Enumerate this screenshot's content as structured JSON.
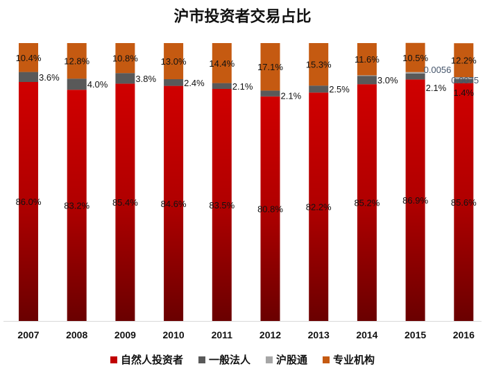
{
  "chart_data": {
    "type": "bar",
    "stacked": true,
    "title": "沪市投资者交易占比",
    "categories": [
      "2007",
      "2008",
      "2009",
      "2010",
      "2011",
      "2012",
      "2013",
      "2014",
      "2015",
      "2016"
    ],
    "ylim": [
      0,
      100
    ],
    "series": [
      {
        "name": "自然人投资者",
        "color": "#c00000",
        "values": [
          86.0,
          83.2,
          85.4,
          84.6,
          83.5,
          80.8,
          82.2,
          85.2,
          86.9,
          85.6
        ],
        "labels": [
          "86.0%",
          "83.2%",
          "85.4%",
          "84.6%",
          "83.5%",
          "80.8%",
          "82.2%",
          "85.2%",
          "86.9%",
          "85.6%"
        ]
      },
      {
        "name": "一般法人",
        "color": "#595959",
        "values": [
          3.6,
          4.0,
          3.8,
          2.4,
          2.1,
          2.1,
          2.5,
          3.0,
          2.1,
          1.4
        ],
        "labels": [
          "3.6%",
          "4.0%",
          "3.8%",
          "2.4%",
          "2.1%",
          "2.1%",
          "2.5%",
          "3.0%",
          "2.1%",
          "1.4%"
        ]
      },
      {
        "name": "沪股通",
        "color": "#a6a6a6",
        "values": [
          0,
          0,
          0,
          0,
          0,
          0,
          0,
          0.2,
          0.56,
          0.75
        ],
        "labels": [
          "",
          "",
          "",
          "",
          "",
          "",
          "",
          "",
          "0.0056",
          "0.0075"
        ]
      },
      {
        "name": "专业机构",
        "color": "#c55a11",
        "values": [
          10.4,
          12.8,
          10.8,
          13.0,
          14.4,
          17.1,
          15.3,
          11.6,
          10.5,
          12.2
        ],
        "labels": [
          "10.4%",
          "12.8%",
          "10.8%",
          "13.0%",
          "14.4%",
          "17.1%",
          "15.3%",
          "11.6%",
          "10.5%",
          "12.2%"
        ]
      }
    ],
    "legend": "bottom"
  }
}
